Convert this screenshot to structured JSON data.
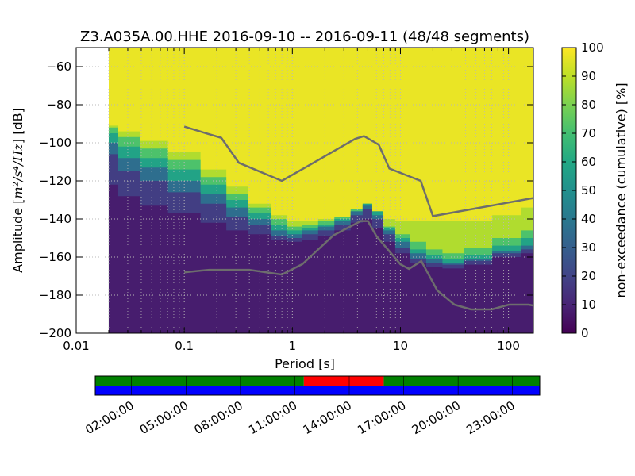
{
  "chart_data": [
    {
      "type": "heatmap",
      "title": "Z3.A035A.00.HHE   2016-09-10 -- 2016-09-11  (48/48 segments)",
      "xlabel": "Period [s]",
      "ylabel_prefix": "Amplitude [",
      "ylabel_math": "m²/s⁴/Hz",
      "ylabel_suffix": "] [dB]",
      "xscale": "log",
      "xlim": [
        0.01,
        170
      ],
      "ylim": [
        -200,
        -50
      ],
      "xticks": [
        0.01,
        0.1,
        1,
        10,
        100
      ],
      "xtick_labels": [
        "0.01",
        "0.1",
        "1",
        "10",
        "100"
      ],
      "yticks": [
        -60,
        -80,
        -100,
        -120,
        -140,
        -160,
        -180,
        -200
      ],
      "ytick_labels": [
        "−60",
        "−80",
        "−100",
        "−120",
        "−140",
        "−160",
        "−180",
        "−200"
      ],
      "grid": true,
      "data_period_range": [
        0.02,
        170
      ],
      "colormap": "viridis",
      "colorbar": {
        "label": "non-exceedance (cumulative) [%]",
        "range": [
          0,
          100
        ],
        "ticks": [
          0,
          10,
          20,
          30,
          40,
          50,
          60,
          70,
          80,
          90,
          100
        ],
        "tick_labels": [
          "0",
          "10",
          "20",
          "30",
          "40",
          "50",
          "60",
          "70",
          "80",
          "90",
          "100"
        ]
      },
      "bands": {
        "comment_free": "",
        "x": [
          0.02,
          0.03,
          0.05,
          0.1,
          0.2,
          0.3,
          0.5,
          0.8,
          1,
          1.5,
          2,
          3,
          4,
          5,
          6,
          8,
          10,
          15,
          20,
          30,
          50,
          100,
          170
        ],
        "v10": [
          -122,
          -128,
          -133,
          -137,
          -142,
          -146,
          -148,
          -151,
          -152,
          -151,
          -149,
          -146,
          -142,
          -140,
          -145,
          -152,
          -158,
          -163,
          -165,
          -166,
          -164,
          -160,
          -158
        ],
        "v20": [
          -106,
          -115,
          -120,
          -126,
          -132,
          -139,
          -143,
          -149,
          -150,
          -148,
          -146,
          -143,
          -138,
          -135,
          -140,
          -148,
          -155,
          -161,
          -163,
          -164,
          -162,
          -158,
          -156
        ],
        "v40": [
          -100,
          -108,
          -113,
          -120,
          -127,
          -134,
          -140,
          -146,
          -148,
          -146,
          -144,
          -141,
          -136,
          -133,
          -138,
          -146,
          -152,
          -158,
          -161,
          -163,
          -161,
          -157,
          -154
        ],
        "v60": [
          -95,
          -102,
          -108,
          -114,
          -122,
          -130,
          -137,
          -143,
          -146,
          -145,
          -143,
          -140,
          -136,
          -132,
          -136,
          -145,
          -150,
          -156,
          -159,
          -161,
          -159,
          -154,
          -150
        ],
        "v80": [
          -92,
          -97,
          -103,
          -109,
          -118,
          -127,
          -134,
          -140,
          -144,
          -143,
          -141,
          -139,
          -135,
          -132,
          -136,
          -144,
          -148,
          -152,
          -156,
          -158,
          -155,
          -150,
          -146
        ],
        "v90": [
          -91,
          -94,
          -99,
          -105,
          -114,
          -123,
          -132,
          -138,
          -141,
          -141,
          -140,
          -139,
          -135,
          -132,
          -136,
          -140,
          -141,
          -141,
          -141,
          -141,
          -141,
          -138,
          -134
        ]
      },
      "nhnm": {
        "x": [
          0.1,
          0.17,
          0.22,
          0.32,
          0.8,
          3.8,
          4.6,
          6.3,
          7.9,
          15.4,
          20,
          170
        ],
        "y": [
          -91.5,
          -95.5,
          -97.4,
          -110.5,
          -120,
          -98,
          -96.5,
          -101,
          -113.5,
          -120,
          -138.5,
          -129
        ]
      },
      "nlnm": {
        "x": [
          0.1,
          0.17,
          0.4,
          0.8,
          1.24,
          2.4,
          4.3,
          5,
          6,
          10,
          12,
          15.6,
          21.9,
          31.6,
          45,
          70,
          101,
          154,
          170
        ],
        "y": [
          -168,
          -166.7,
          -166.7,
          -169.2,
          -163.7,
          -148.6,
          -141.1,
          -141.1,
          -149,
          -163.8,
          -166.2,
          -162.1,
          -177.5,
          -185,
          -187.5,
          -187.5,
          -185,
          -185,
          -185.5
        ]
      },
      "colors": {
        "nlnm_nhnm_line": "#6d6d6d",
        "grid": "#b8b8b8"
      }
    },
    {
      "type": "timeline",
      "tick_labels": [
        "02:00:00",
        "05:00:00",
        "08:00:00",
        "11:00:00",
        "14:00:00",
        "17:00:00",
        "20:00:00",
        "23:00:00"
      ],
      "tick_hours": [
        2,
        5,
        8,
        11,
        14,
        17,
        20,
        23
      ],
      "range_hours": [
        0,
        24.5
      ],
      "top_row_colors": [
        "green",
        "red",
        "green"
      ],
      "top_row_segments_hours": [
        [
          0,
          11.5
        ],
        [
          11.5,
          15.9
        ],
        [
          15.9,
          24.5
        ]
      ],
      "bottom_row_color": "blue",
      "colors": {
        "green": "#008000",
        "red": "#ff0000",
        "blue": "#0000ff"
      }
    }
  ]
}
